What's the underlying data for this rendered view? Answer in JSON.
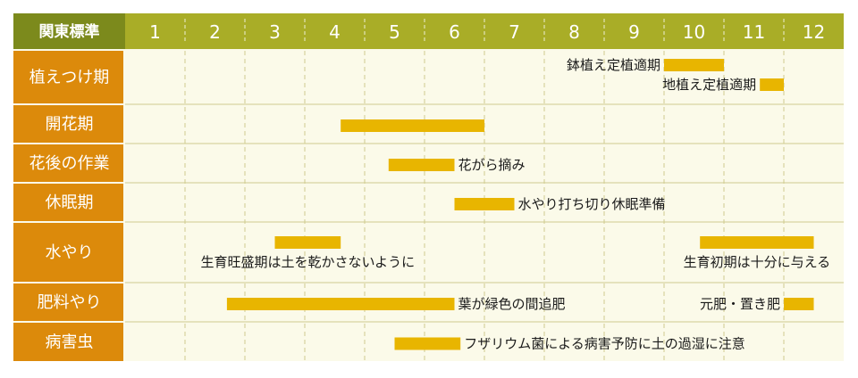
{
  "chart_data": {
    "type": "gantt",
    "header_label": "関東標準",
    "x": [
      1,
      2,
      3,
      4,
      5,
      6,
      7,
      8,
      9,
      10,
      11,
      12
    ],
    "xlim": [
      1,
      13
    ],
    "rows": [
      {
        "label": "植えつけ期",
        "bars": [
          {
            "start": 10.0,
            "end": 11.0,
            "text": "鉢植え定植適期",
            "text_side": "left"
          },
          {
            "start": 11.6,
            "end": 12.0,
            "text": "地植え定植適期",
            "text_side": "left"
          }
        ]
      },
      {
        "label": "開花期",
        "bars": [
          {
            "start": 4.6,
            "end": 7.0,
            "text": "",
            "text_side": "none"
          }
        ]
      },
      {
        "label": "花後の作業",
        "bars": [
          {
            "start": 5.4,
            "end": 6.5,
            "text": "花がら摘み",
            "text_side": "right"
          }
        ]
      },
      {
        "label": "休眠期",
        "bars": [
          {
            "start": 6.5,
            "end": 7.5,
            "text": "水やり打ち切り休眠準備",
            "text_side": "right"
          }
        ]
      },
      {
        "label": "水やり",
        "bars": [
          {
            "start": 3.5,
            "end": 4.6,
            "text": "生育旺盛期は土を乾かさないように",
            "text_side": "below"
          },
          {
            "start": 10.6,
            "end": 12.5,
            "text": "生育初期は十分に与える",
            "text_side": "below"
          }
        ]
      },
      {
        "label": "肥料やり",
        "bars": [
          {
            "start": 2.7,
            "end": 6.5,
            "text": "葉が緑色の間追肥",
            "text_side": "right"
          },
          {
            "start": 12.0,
            "end": 12.5,
            "text": "元肥・置き肥",
            "text_side": "left"
          }
        ]
      },
      {
        "label": "病害虫",
        "bars": [
          {
            "start": 5.5,
            "end": 6.6,
            "text": "フザリウム菌による病害予防に土の過湿に注意",
            "text_side": "right"
          }
        ]
      }
    ],
    "colors": {
      "header_bg": "#a9ad27",
      "header_first_bg": "#7c8a1c",
      "label_bg": "#dc8a0b",
      "grid_bg": "#fbfae9",
      "bar": "#e8b500",
      "grid_line": "#cfcb8e"
    }
  }
}
